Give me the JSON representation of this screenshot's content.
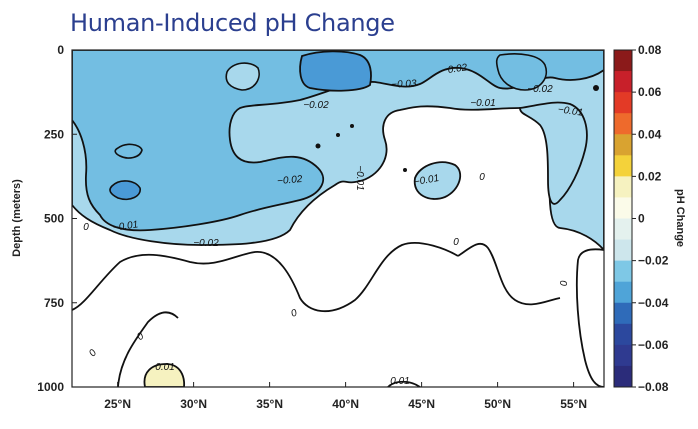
{
  "title": "Human-Induced pH Change",
  "chart_data": {
    "type": "heatmap",
    "title": "Human-Induced pH Change",
    "ylabel": "Depth (meters)",
    "y_ticks": [
      "0",
      "250",
      "500",
      "750",
      "1000"
    ],
    "x_ticks": [
      "25°N",
      "30°N",
      "35°N",
      "40°N",
      "45°N",
      "50°N",
      "55°N"
    ],
    "colorbar_label": "pH Change",
    "colorbar_ticks": [
      "0.08",
      "0.06",
      "0.04",
      "0.02",
      "0",
      "−0.02",
      "−0.04",
      "−0.06",
      "−0.08"
    ],
    "colorbar_colors": [
      "#8b1a1a",
      "#c8202a",
      "#e33a26",
      "#ee6a2c",
      "#d9a330",
      "#f4d23a",
      "#f6f2c0",
      "#fbfbe9",
      "#e4f1ee",
      "#cde6ec",
      "#7ec8e6",
      "#4fa4d8",
      "#2f6bb9",
      "#2c489e",
      "#2f3a90",
      "#2b2c7a"
    ],
    "contour_labels": [
      "−0.02",
      "−0.03",
      "−0.02",
      "−0.02",
      "−0.01",
      "−0.01",
      "−0.02",
      "−0.01",
      "−0.02",
      "−0.01",
      "−0.01",
      "0",
      "0",
      "0",
      "0",
      "0",
      "0",
      "0",
      "0.01",
      "0.01"
    ],
    "lat_range": [
      22,
      57
    ],
    "depth_range": [
      0,
      1000
    ]
  }
}
